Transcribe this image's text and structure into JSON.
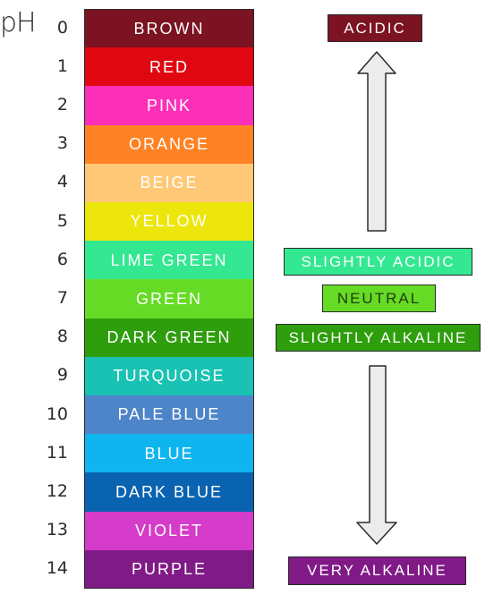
{
  "scale": {
    "title": "pH",
    "levels": [
      {
        "ph": "0",
        "colour_name": "BROWN",
        "fill": "#7c1322"
      },
      {
        "ph": "1",
        "colour_name": "RED",
        "fill": "#e00710"
      },
      {
        "ph": "2",
        "colour_name": "PINK",
        "fill": "#fb2fb8"
      },
      {
        "ph": "3",
        "colour_name": "ORANGE",
        "fill": "#ff8224"
      },
      {
        "ph": "4",
        "colour_name": "BEIGE",
        "fill": "#ffc876"
      },
      {
        "ph": "5",
        "colour_name": "YELLOW",
        "fill": "#ece60c"
      },
      {
        "ph": "6",
        "colour_name": "LIME GREEN",
        "fill": "#33e890"
      },
      {
        "ph": "7",
        "colour_name": "GREEN",
        "fill": "#66db25"
      },
      {
        "ph": "8",
        "colour_name": "DARK GREEN",
        "fill": "#2e9e0d"
      },
      {
        "ph": "9",
        "colour_name": "TURQUOISE",
        "fill": "#19c2b2"
      },
      {
        "ph": "10",
        "colour_name": "PALE BLUE",
        "fill": "#4d85c8"
      },
      {
        "ph": "11",
        "colour_name": "BLUE",
        "fill": "#0fb5ef"
      },
      {
        "ph": "12",
        "colour_name": "DARK BLUE",
        "fill": "#0a63b0"
      },
      {
        "ph": "13",
        "colour_name": "VIOLET",
        "fill": "#d43cc9"
      },
      {
        "ph": "14",
        "colour_name": "PURPLE",
        "fill": "#801a87"
      }
    ]
  },
  "labels": {
    "acidic": {
      "text": "ACIDIC",
      "fill": "#7c1322"
    },
    "slightly_acidic": {
      "text": "SLIGHTLY ACIDIC",
      "fill": "#33e890"
    },
    "neutral": {
      "text": "NEUTRAL",
      "fill": "#66db25"
    },
    "slightly_alkaline": {
      "text": "SLIGHTLY ALKALINE",
      "fill": "#2e9e0d"
    },
    "very_alkaline": {
      "text": "VERY ALKALINE",
      "fill": "#801a87"
    }
  },
  "arrow_fill": "#ececec"
}
